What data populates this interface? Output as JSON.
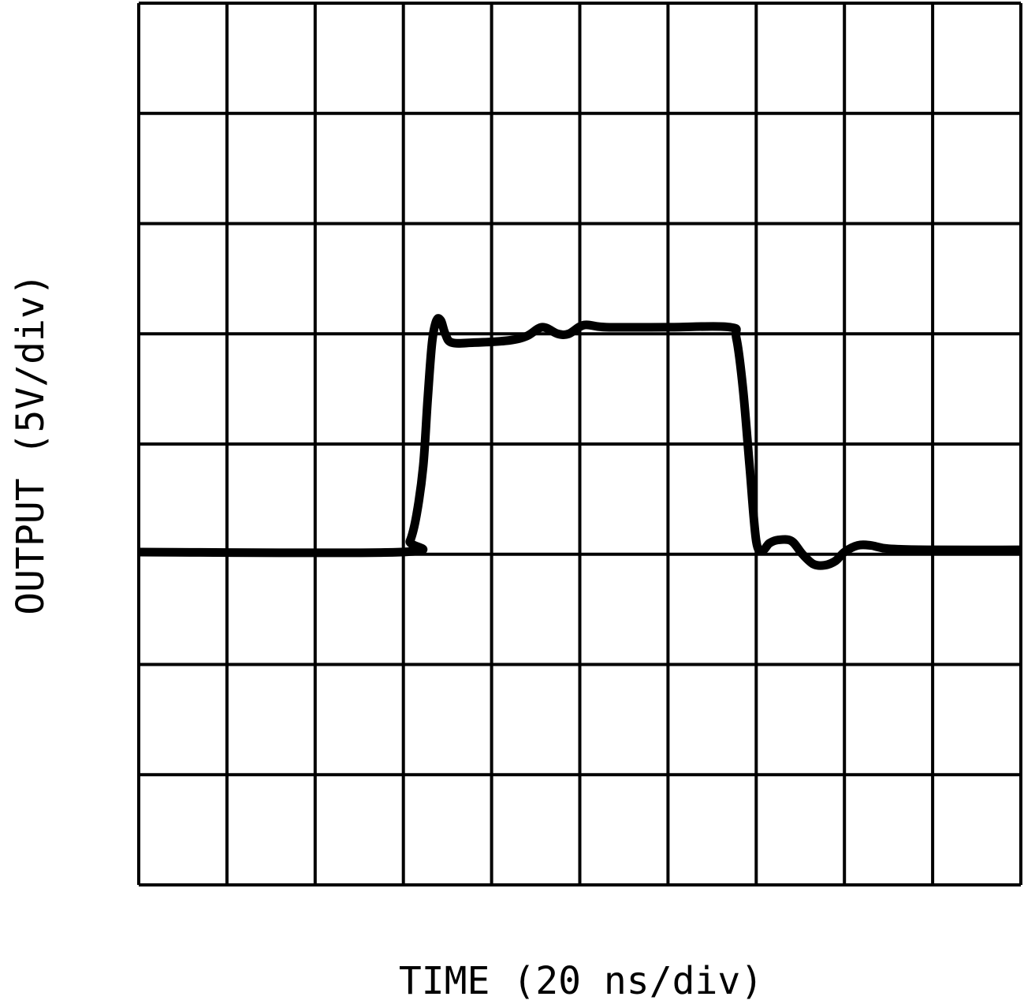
{
  "chart_data": {
    "type": "line",
    "title": "",
    "xlabel": "TIME (20 ns/div)",
    "ylabel": "OUTPUT (5V/div)",
    "xlim": [
      0,
      200
    ],
    "ylim": [
      -15,
      25
    ],
    "x_unit": "ns",
    "y_unit": "V",
    "x_divisions": 10,
    "y_divisions": 8,
    "grid": true,
    "colors": {
      "trace": "#000000",
      "grid": "#000000",
      "background": "#ffffff"
    },
    "series": [
      {
        "x": [
          0,
          59.5,
          61.5,
          63,
          64.5,
          65.5,
          66.5,
          67.5,
          68.5,
          69.5,
          71,
          76,
          84,
          88,
          91.5,
          95,
          97.5,
          101,
          106,
          120,
          134,
          135.5,
          137,
          138.5,
          140,
          141.5,
          143,
          145,
          148,
          150.5,
          153,
          155.5,
          158,
          160,
          163,
          166,
          170,
          180,
          200
        ],
        "y": [
          0.1,
          0.1,
          0.6,
          1.8,
          4,
          7,
          9.6,
          10.6,
          10.6,
          10,
          9.6,
          9.6,
          9.7,
          9.9,
          10.3,
          10.0,
          10.0,
          10.4,
          10.3,
          10.3,
          10.3,
          9.8,
          7.5,
          4,
          0.6,
          0.2,
          0.5,
          0.65,
          0.6,
          0,
          -0.45,
          -0.5,
          -0.3,
          0.1,
          0.4,
          0.4,
          0.25,
          0.2,
          0.2
        ]
      }
    ]
  }
}
